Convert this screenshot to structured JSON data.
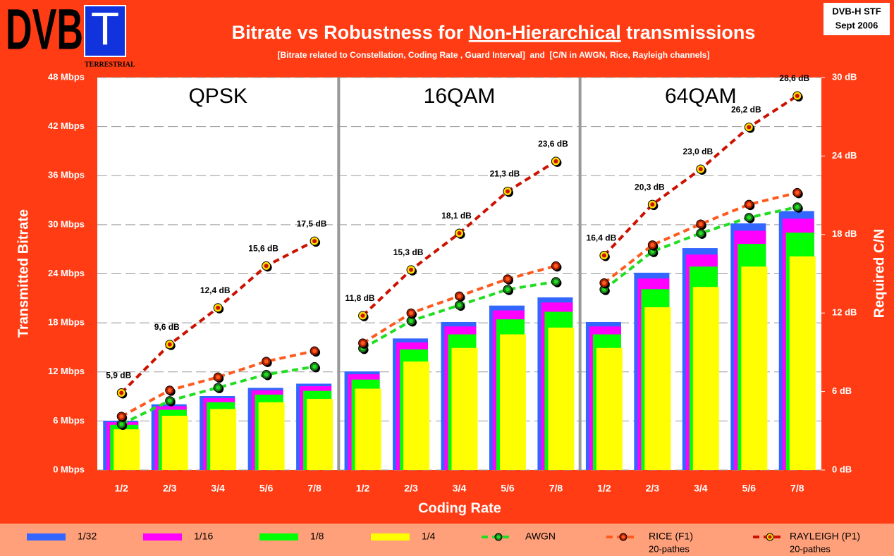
{
  "chart_data": {
    "type": "bar_line",
    "title_parts": [
      "Bitrate vs Robustness for ",
      "Non-Hierarchical",
      " transmissions"
    ],
    "subtitle": "[Bitrate related to Constellation, Coding Rate , Guard Interval]  and  [C/N in AWGN, Rice, Rayleigh channels]",
    "logo": {
      "main": "DVB",
      "letter": "T",
      "sub": "TERRESTRIAL"
    },
    "badge": [
      "DVB-H STF",
      "Sept 2006"
    ],
    "x_label": "Coding Rate",
    "y_label": "Transmitted Bitrate",
    "y2_label": "Required C/N",
    "group_labels": [
      "QPSK",
      "16QAM",
      "64QAM"
    ],
    "categories": [
      "1/2",
      "2/3",
      "3/4",
      "5/6",
      "7/8",
      "1/2",
      "2/3",
      "3/4",
      "5/6",
      "7/8",
      "1/2",
      "2/3",
      "3/4",
      "5/6",
      "7/8"
    ],
    "ylim": [
      0,
      48
    ],
    "yticks": [
      {
        "value": 0,
        "label": "0 Mbps"
      },
      {
        "value": 6,
        "label": "6 Mbps"
      },
      {
        "value": 12,
        "label": "12 Mbps"
      },
      {
        "value": 18,
        "label": "18 Mbps"
      },
      {
        "value": 24,
        "label": "24 Mbps"
      },
      {
        "value": 30,
        "label": "30 Mbps"
      },
      {
        "value": 36,
        "label": "36 Mbps"
      },
      {
        "value": 42,
        "label": "42 Mbps"
      },
      {
        "value": 48,
        "label": "48 Mbps"
      }
    ],
    "y2lim": [
      0,
      30
    ],
    "y2ticks": [
      {
        "value": 0,
        "label": "0 dB"
      },
      {
        "value": 6,
        "label": "6 dB"
      },
      {
        "value": 12,
        "label": "12 dB"
      },
      {
        "value": 18,
        "label": "18 dB"
      },
      {
        "value": 24,
        "label": "24 dB"
      },
      {
        "value": 30,
        "label": "30 dB"
      }
    ],
    "grid": true,
    "series": [
      {
        "name": "1/32",
        "kind": "bar",
        "color": "#3366ff",
        "values": [
          6.03,
          8.04,
          9.05,
          10.05,
          10.56,
          12.06,
          16.09,
          18.1,
          20.11,
          21.11,
          18.1,
          24.13,
          27.14,
          30.16,
          31.67
        ]
      },
      {
        "name": "1/16",
        "kind": "bar",
        "color": "#ff00ff",
        "values": [
          5.85,
          7.81,
          8.78,
          9.76,
          10.25,
          11.71,
          15.61,
          17.56,
          19.52,
          20.49,
          17.56,
          23.42,
          26.35,
          29.27,
          30.74
        ]
      },
      {
        "name": "1/8",
        "kind": "bar",
        "color": "#00ff00",
        "values": [
          5.53,
          7.37,
          8.29,
          9.22,
          9.68,
          11.06,
          14.75,
          16.59,
          18.43,
          19.35,
          16.59,
          22.12,
          24.88,
          27.65,
          29.03
        ]
      },
      {
        "name": "1/4",
        "kind": "bar",
        "color": "#ffff00",
        "values": [
          4.98,
          6.64,
          7.46,
          8.29,
          8.71,
          9.95,
          13.27,
          14.93,
          16.59,
          17.42,
          14.93,
          19.91,
          22.39,
          24.88,
          26.13
        ]
      },
      {
        "name": "AWGN",
        "kind": "line",
        "axis": "y2",
        "color": "#22dd22",
        "marker": "#1a7a1a",
        "values": [
          3.5,
          5.3,
          6.3,
          7.3,
          7.9,
          9.3,
          11.4,
          12.6,
          13.8,
          14.4,
          13.8,
          16.7,
          18.1,
          19.3,
          20.1
        ]
      },
      {
        "name": "RICE (F1)",
        "note": "20-pathes",
        "kind": "line",
        "axis": "y2",
        "color": "#ff5a1e",
        "marker": "#b02000",
        "values": [
          4.1,
          6.1,
          7.1,
          8.3,
          9.1,
          9.7,
          12.0,
          13.3,
          14.6,
          15.6,
          14.3,
          17.2,
          18.8,
          20.3,
          21.2
        ]
      },
      {
        "name": "RAYLEIGH (P1)",
        "note": "20-pathes",
        "kind": "line",
        "axis": "y2",
        "color": "#cc1100",
        "marker": "#ffdd00",
        "values": [
          5.9,
          9.6,
          12.4,
          15.6,
          17.5,
          11.8,
          15.3,
          18.1,
          21.3,
          23.6,
          16.4,
          20.3,
          23.0,
          26.2,
          28.6
        ],
        "value_labels": [
          "5,9 dB",
          "9,6 dB",
          "12,4 dB",
          "15,6 dB",
          "17,5 dB",
          "11,8 dB",
          "15,3 dB",
          "18,1 dB",
          "21,3 dB",
          "23,6 dB",
          "16,4 dB",
          "20,3 dB",
          "23,0 dB",
          "26,2 dB",
          "28,6 dB"
        ]
      }
    ]
  }
}
